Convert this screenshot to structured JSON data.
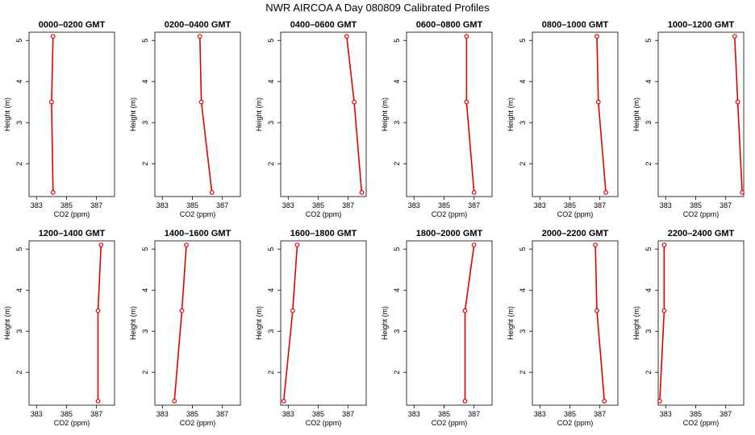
{
  "figure": {
    "title": "NWR AIRCOA A  Day 080809  Calibrated Profiles"
  },
  "colors": {
    "series": "#e00000",
    "axes": "#000000",
    "background": "#ffffff"
  },
  "chart_data": [
    {
      "type": "line",
      "title": "0000–0200 GMT",
      "xlabel": "CO2 (ppm)",
      "ylabel": "Height (m)",
      "xlim": [
        382.5,
        388.2
      ],
      "ylim": [
        1.2,
        5.2
      ],
      "grid": false,
      "xticks": [
        383,
        385,
        387
      ],
      "yticks": [
        2,
        3,
        4,
        5
      ],
      "series": [
        {
          "x": [
            384.1,
            384.0,
            384.1
          ],
          "y": [
            1.3,
            3.5,
            5.1
          ]
        }
      ]
    },
    {
      "type": "line",
      "title": "0200–0400 GMT",
      "xlabel": "CO2 (ppm)",
      "ylabel": "Height (m)",
      "xlim": [
        382.5,
        388.2
      ],
      "ylim": [
        1.2,
        5.2
      ],
      "grid": false,
      "xticks": [
        383,
        385,
        387
      ],
      "yticks": [
        2,
        3,
        4,
        5
      ],
      "series": [
        {
          "x": [
            386.3,
            385.6,
            385.5
          ],
          "y": [
            1.3,
            3.5,
            5.1
          ]
        }
      ]
    },
    {
      "type": "line",
      "title": "0400–0600 GMT",
      "xlabel": "CO2 (ppm)",
      "ylabel": "Height (m)",
      "xlim": [
        382.5,
        388.2
      ],
      "ylim": [
        1.2,
        5.2
      ],
      "grid": false,
      "xticks": [
        383,
        385,
        387
      ],
      "yticks": [
        2,
        3,
        4,
        5
      ],
      "series": [
        {
          "x": [
            387.9,
            387.4,
            386.9
          ],
          "y": [
            1.3,
            3.5,
            5.1
          ]
        }
      ]
    },
    {
      "type": "line",
      "title": "0600–0800 GMT",
      "xlabel": "CO2 (ppm)",
      "ylabel": "Height (m)",
      "xlim": [
        382.5,
        388.2
      ],
      "ylim": [
        1.2,
        5.2
      ],
      "grid": false,
      "xticks": [
        383,
        385,
        387
      ],
      "yticks": [
        2,
        3,
        4,
        5
      ],
      "series": [
        {
          "x": [
            387.0,
            386.5,
            386.5
          ],
          "y": [
            1.3,
            3.5,
            5.1
          ]
        }
      ]
    },
    {
      "type": "line",
      "title": "0800–1000 GMT",
      "xlabel": "CO2 (ppm)",
      "ylabel": "Height (m)",
      "xlim": [
        382.5,
        388.2
      ],
      "ylim": [
        1.2,
        5.2
      ],
      "grid": false,
      "xticks": [
        383,
        385,
        387
      ],
      "yticks": [
        2,
        3,
        4,
        5
      ],
      "series": [
        {
          "x": [
            387.4,
            386.9,
            386.8
          ],
          "y": [
            1.3,
            3.5,
            5.1
          ]
        }
      ]
    },
    {
      "type": "line",
      "title": "1000–1200 GMT",
      "xlabel": "CO2 (ppm)",
      "ylabel": "Height (m)",
      "xlim": [
        382.5,
        388.2
      ],
      "ylim": [
        1.2,
        5.2
      ],
      "grid": false,
      "xticks": [
        383,
        385,
        387
      ],
      "yticks": [
        2,
        3,
        4,
        5
      ],
      "series": [
        {
          "x": [
            388.1,
            387.8,
            387.6
          ],
          "y": [
            1.3,
            3.5,
            5.1
          ]
        }
      ]
    },
    {
      "type": "line",
      "title": "1200–1400 GMT",
      "xlabel": "CO2 (ppm)",
      "ylabel": "Height (m)",
      "xlim": [
        382.5,
        388.2
      ],
      "ylim": [
        1.2,
        5.2
      ],
      "grid": false,
      "xticks": [
        383,
        385,
        387
      ],
      "yticks": [
        2,
        3,
        4,
        5
      ],
      "series": [
        {
          "x": [
            387.1,
            387.1,
            387.3
          ],
          "y": [
            1.3,
            3.5,
            5.1
          ]
        }
      ]
    },
    {
      "type": "line",
      "title": "1400–1600 GMT",
      "xlabel": "CO2 (ppm)",
      "ylabel": "Height (m)",
      "xlim": [
        382.5,
        388.2
      ],
      "ylim": [
        1.2,
        5.2
      ],
      "grid": false,
      "xticks": [
        383,
        385,
        387
      ],
      "yticks": [
        2,
        3,
        4,
        5
      ],
      "series": [
        {
          "x": [
            383.8,
            384.3,
            384.6
          ],
          "y": [
            1.3,
            3.5,
            5.1
          ]
        }
      ]
    },
    {
      "type": "line",
      "title": "1600–1800 GMT",
      "xlabel": "CO2 (ppm)",
      "ylabel": "Height (m)",
      "xlim": [
        382.5,
        388.2
      ],
      "ylim": [
        1.2,
        5.2
      ],
      "grid": false,
      "xticks": [
        383,
        385,
        387
      ],
      "yticks": [
        2,
        3,
        4,
        5
      ],
      "series": [
        {
          "x": [
            382.7,
            383.3,
            383.6
          ],
          "y": [
            1.3,
            3.5,
            5.1
          ]
        }
      ]
    },
    {
      "type": "line",
      "title": "1800–2000 GMT",
      "xlabel": "CO2 (ppm)",
      "ylabel": "Height (m)",
      "xlim": [
        382.5,
        388.2
      ],
      "ylim": [
        1.2,
        5.2
      ],
      "grid": false,
      "xticks": [
        383,
        385,
        387
      ],
      "yticks": [
        2,
        3,
        4,
        5
      ],
      "series": [
        {
          "x": [
            386.4,
            386.4,
            387.0
          ],
          "y": [
            1.3,
            3.5,
            5.1
          ]
        }
      ]
    },
    {
      "type": "line",
      "title": "2000–2200 GMT",
      "xlabel": "CO2 (ppm)",
      "ylabel": "Height (m)",
      "xlim": [
        382.5,
        388.2
      ],
      "ylim": [
        1.2,
        5.2
      ],
      "grid": false,
      "xticks": [
        383,
        385,
        387
      ],
      "yticks": [
        2,
        3,
        4,
        5
      ],
      "series": [
        {
          "x": [
            387.3,
            386.8,
            386.7
          ],
          "y": [
            1.3,
            3.5,
            5.1
          ]
        }
      ]
    },
    {
      "type": "line",
      "title": "2200–2400 GMT",
      "xlabel": "CO2 (ppm)",
      "ylabel": "Height (m)",
      "xlim": [
        382.5,
        388.2
      ],
      "ylim": [
        1.2,
        5.2
      ],
      "grid": false,
      "xticks": [
        383,
        385,
        387
      ],
      "yticks": [
        2,
        3,
        4,
        5
      ],
      "series": [
        {
          "x": [
            382.6,
            382.9,
            382.9
          ],
          "y": [
            1.3,
            3.5,
            5.1
          ]
        }
      ]
    }
  ]
}
